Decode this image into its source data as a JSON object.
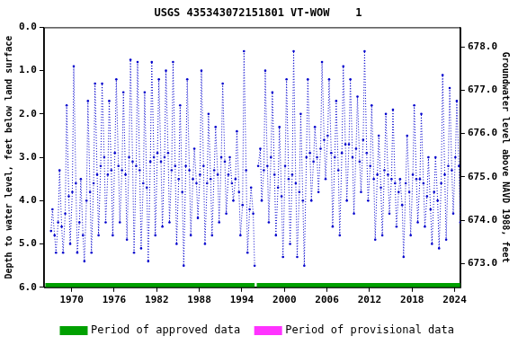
{
  "chart_data": {
    "type": "line",
    "title": "USGS 435343072151801 VT-WOW    1",
    "y_label": "Depth to water level, feet below land surface",
    "y2_label": "Groundwater level above NAVD 1988, feet",
    "xlim": [
      1966.1,
      2024.8
    ],
    "xticks": [
      1970,
      1976,
      1982,
      1988,
      1994,
      2000,
      2006,
      2012,
      2018,
      2024
    ],
    "ylim": [
      0,
      6
    ],
    "yticks": [
      {
        "value": 0,
        "label": "0.0"
      },
      {
        "value": 1,
        "label": "1.0"
      },
      {
        "value": 2,
        "label": "2.0"
      },
      {
        "value": 3,
        "label": "3.0"
      },
      {
        "value": 4,
        "label": "4.0"
      },
      {
        "value": 5,
        "label": "5.0"
      },
      {
        "value": 6,
        "label": "6.0"
      }
    ],
    "y2lim": [
      672.45,
      678.45
    ],
    "y2ticks": [
      {
        "value": 673,
        "label": "673.0"
      },
      {
        "value": 674,
        "label": "674.0"
      },
      {
        "value": 675,
        "label": "675.0"
      },
      {
        "value": 676,
        "label": "676.0"
      },
      {
        "value": 677,
        "label": "677.0"
      },
      {
        "value": 678,
        "label": "678.0"
      }
    ],
    "grid": false,
    "legend": "bottom",
    "series": [
      {
        "color": "#0000cc",
        "line_style": "dotted",
        "marker": "circle",
        "x": [
          1967.1,
          1967.3,
          1967.6,
          1967.8,
          1968.1,
          1968.3,
          1968.6,
          1968.8,
          1969.1,
          1969.3,
          1969.6,
          1969.8,
          1970.1,
          1970.3,
          1970.6,
          1970.8,
          1971.1,
          1971.3,
          1971.6,
          1971.8,
          1972.1,
          1972.3,
          1972.6,
          1972.8,
          1973.1,
          1973.3,
          1973.6,
          1973.8,
          1974.1,
          1974.3,
          1974.6,
          1974.8,
          1975.1,
          1975.3,
          1975.6,
          1975.8,
          1976.1,
          1976.3,
          1976.6,
          1976.8,
          1977.1,
          1977.3,
          1977.6,
          1977.8,
          1978.1,
          1978.3,
          1978.6,
          1978.8,
          1979.1,
          1979.3,
          1979.6,
          1979.8,
          1980.1,
          1980.3,
          1980.6,
          1980.8,
          1981.1,
          1981.3,
          1981.6,
          1981.8,
          1982.1,
          1982.3,
          1982.6,
          1982.8,
          1983.1,
          1983.3,
          1983.6,
          1983.8,
          1984.1,
          1984.3,
          1984.6,
          1984.8,
          1985.1,
          1985.3,
          1985.6,
          1985.8,
          1986.1,
          1986.3,
          1986.6,
          1986.8,
          1987.1,
          1987.3,
          1987.6,
          1987.8,
          1988.1,
          1988.3,
          1988.6,
          1988.8,
          1989.1,
          1989.3,
          1989.6,
          1989.8,
          1990.1,
          1990.3,
          1990.6,
          1990.8,
          1991.1,
          1991.3,
          1991.6,
          1991.8,
          1992.1,
          1992.3,
          1992.6,
          1992.8,
          1993.1,
          1993.3,
          1993.6,
          1993.8,
          1994.1,
          1994.3,
          1994.6,
          1994.8,
          1995.1,
          1995.3,
          1995.6,
          1995.8,
          1996.1,
          1996.3,
          1996.6,
          1996.8,
          1997.1,
          1997.3,
          1997.6,
          1997.8,
          1998.1,
          1998.3,
          1998.6,
          1998.8,
          1999.1,
          1999.3,
          1999.6,
          1999.8,
          2000.1,
          2000.3,
          2000.6,
          2000.8,
          2001.1,
          2001.3,
          2001.6,
          2001.8,
          2002.1,
          2002.3,
          2002.6,
          2002.8,
          2003.1,
          2003.3,
          2003.6,
          2003.8,
          2004.1,
          2004.3,
          2004.6,
          2004.8,
          2005.1,
          2005.3,
          2005.6,
          2005.8,
          2006.1,
          2006.3,
          2006.6,
          2006.8,
          2007.1,
          2007.3,
          2007.6,
          2007.8,
          2008.1,
          2008.3,
          2008.6,
          2008.8,
          2009.1,
          2009.3,
          2009.6,
          2009.8,
          2010.1,
          2010.3,
          2010.6,
          2010.8,
          2011.1,
          2011.3,
          2011.6,
          2011.8,
          2012.1,
          2012.3,
          2012.6,
          2012.8,
          2013.1,
          2013.3,
          2013.6,
          2013.8,
          2014.1,
          2014.3,
          2014.6,
          2014.8,
          2015.1,
          2015.3,
          2015.6,
          2015.8,
          2016.1,
          2016.3,
          2016.6,
          2016.8,
          2017.1,
          2017.3,
          2017.6,
          2017.8,
          2018.1,
          2018.3,
          2018.6,
          2018.8,
          2019.1,
          2019.3,
          2019.6,
          2019.8,
          2020.1,
          2020.3,
          2020.6,
          2020.8,
          2021.1,
          2021.3,
          2021.6,
          2021.8,
          2022.1,
          2022.3,
          2022.6,
          2022.8,
          2023.1,
          2023.3,
          2023.6,
          2023.8,
          2024.1,
          2024.3,
          2024.6,
          2024.8
        ],
        "values": [
          4.7,
          4.2,
          4.8,
          5.2,
          4.5,
          3.3,
          4.6,
          5.2,
          4.3,
          1.8,
          3.9,
          5.0,
          3.8,
          0.9,
          3.6,
          5.2,
          4.5,
          3.5,
          4.8,
          5.4,
          4.0,
          1.7,
          3.8,
          5.2,
          3.6,
          1.3,
          3.4,
          4.8,
          3.2,
          1.3,
          3.0,
          4.5,
          3.4,
          1.7,
          3.3,
          4.8,
          2.9,
          1.2,
          3.2,
          4.5,
          3.3,
          1.5,
          3.4,
          4.9,
          3.0,
          0.75,
          3.1,
          5.2,
          3.2,
          0.8,
          3.3,
          5.1,
          3.6,
          1.5,
          3.7,
          5.4,
          3.1,
          0.8,
          3.0,
          4.8,
          2.9,
          1.2,
          3.1,
          4.6,
          3.0,
          1.0,
          2.9,
          4.5,
          3.3,
          0.8,
          3.2,
          5.0,
          3.5,
          1.8,
          3.8,
          5.5,
          3.2,
          1.2,
          3.3,
          4.8,
          3.5,
          2.8,
          3.6,
          4.4,
          3.4,
          1.0,
          3.2,
          5.0,
          3.6,
          2.0,
          3.5,
          4.8,
          3.3,
          2.3,
          3.4,
          4.5,
          3.0,
          1.3,
          3.1,
          4.3,
          3.4,
          3.0,
          3.6,
          4.0,
          3.5,
          2.4,
          3.8,
          4.8,
          4.1,
          0.55,
          3.3,
          5.2,
          4.2,
          3.7,
          4.3,
          5.5,
          null,
          3.2,
          2.8,
          4.0,
          3.3,
          1.0,
          3.2,
          4.5,
          3.0,
          1.5,
          3.4,
          4.8,
          3.7,
          2.3,
          3.9,
          5.3,
          3.2,
          1.2,
          3.5,
          5.0,
          3.4,
          0.55,
          3.6,
          5.3,
          3.8,
          2.0,
          4.0,
          5.5,
          3.0,
          1.2,
          2.9,
          4.0,
          3.1,
          2.3,
          3.0,
          3.8,
          2.8,
          0.8,
          2.6,
          3.5,
          2.5,
          1.2,
          2.9,
          4.6,
          3.0,
          1.7,
          3.3,
          4.8,
          2.9,
          0.9,
          2.7,
          4.0,
          2.7,
          1.2,
          3.0,
          4.3,
          2.8,
          1.6,
          3.1,
          3.8,
          2.6,
          0.55,
          2.9,
          4.0,
          3.2,
          1.8,
          3.5,
          4.9,
          3.4,
          2.5,
          3.7,
          4.8,
          3.3,
          2.0,
          3.4,
          4.3,
          3.5,
          1.9,
          3.6,
          4.6,
          3.8,
          3.5,
          4.1,
          5.3,
          3.6,
          2.5,
          3.8,
          4.8,
          3.4,
          1.8,
          3.5,
          4.5,
          3.5,
          2.0,
          3.6,
          4.6,
          3.9,
          3.0,
          4.2,
          5.0,
          3.8,
          3.0,
          4.0,
          5.1,
          3.6,
          1.1,
          3.4,
          4.9,
          3.2,
          1.4,
          3.3,
          4.3,
          3.0,
          1.7,
          3.2,
          4.5
        ]
      },
      {
        "name": "Period of approved data",
        "color": "#00a000",
        "line_style": "solid",
        "marker": "none",
        "x": [
          1966.3,
          1995.8,
          1995.9,
          1996.1,
          2024.8
        ],
        "values": [
          5.95,
          5.95,
          null,
          5.95,
          5.95
        ]
      },
      {
        "name": "Period of provisional data",
        "color": "#ff33ff",
        "line_style": "solid",
        "marker": "none",
        "x": [],
        "values": []
      }
    ]
  }
}
